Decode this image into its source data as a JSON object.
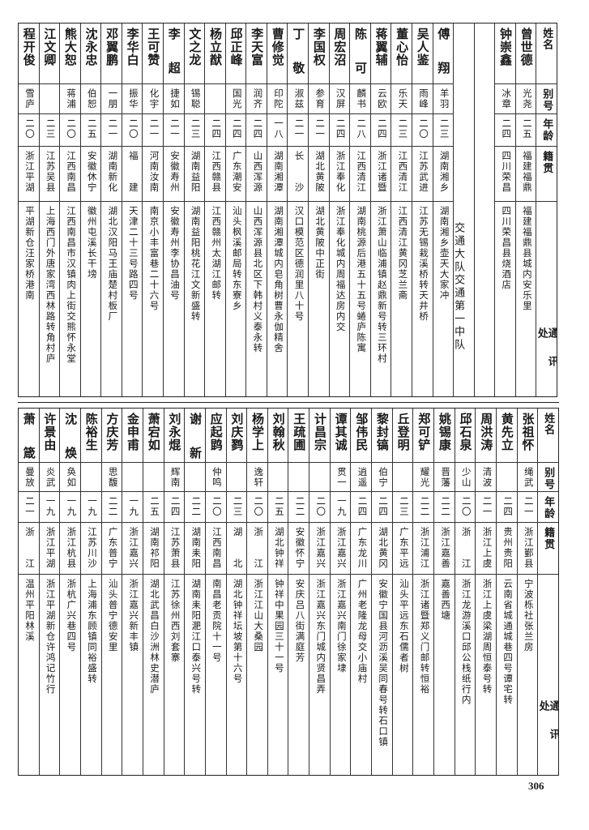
{
  "headers": {
    "name": "姓名",
    "alias": "别号",
    "age": "年龄",
    "origin": "籍贯",
    "address": "通讯处"
  },
  "top_table": {
    "columns": [
      {
        "type": "person",
        "name": "曾世德",
        "alias": "光尧",
        "age": "二五",
        "origin": "福建福鼎",
        "address": "福建福鼎县城内安乐里"
      },
      {
        "type": "person",
        "name": "钟崇鑫",
        "alias": "冰章",
        "age": "二四",
        "origin": "四川荣昌",
        "address": "四川荣昌县烧酒店"
      },
      {
        "type": "blank"
      },
      {
        "type": "section",
        "label": "交通大队交通第一中队"
      },
      {
        "type": "person",
        "name": "傅翔",
        "alias": "羊羽",
        "age": "二三",
        "origin": "湖南湘乡",
        "address": "湖南湘乡壶天大家冲"
      },
      {
        "type": "person",
        "name": "吴人鉴",
        "alias": "雨峰",
        "age": "二〇",
        "origin": "江苏武进",
        "address": "江苏无锡栽溪桥转天井桥"
      },
      {
        "type": "person",
        "name": "董心怡",
        "alias": "乐天",
        "age": "二三",
        "origin": "江西清江",
        "address": "江西清江黄冈芝兰斋"
      },
      {
        "type": "person",
        "name": "蒋翼辅",
        "alias": "云欧",
        "age": "二四",
        "origin": "浙江诸暨",
        "address": "浙江萧山临浦镇赵鼎新号转三环村"
      },
      {
        "type": "person",
        "name": "陈可",
        "alias": "麟书",
        "age": "二八",
        "origin": "江西清江",
        "address": "湖南桃源后港五十五号蜷庐陈寓"
      },
      {
        "type": "person",
        "name": "周宏沼",
        "alias": "汉屏",
        "age": "二四",
        "origin": "浙江奉化",
        "address": "浙江奉化城内周福达房内交"
      },
      {
        "type": "person",
        "name": "李国权",
        "alias": "参育",
        "age": "二一",
        "origin": "湖北黄陂",
        "address": "湖北黄陂中正街"
      },
      {
        "type": "person",
        "name": "丁敬",
        "alias": "淑兹",
        "age": "二一",
        "origin": "长沙",
        "address": "汉口模范区德润里八十号"
      },
      {
        "type": "person",
        "name": "曹修觉",
        "alias": "印陀",
        "age": "一八",
        "origin": "湖南湘潭",
        "address": "湖南湘潭城内皂角树曹永伽精舍"
      },
      {
        "type": "person",
        "name": "李天富",
        "alias": "润齐",
        "age": "二四",
        "origin": "山西浑源",
        "address": "山西浑源县北区下韩村义泰永转"
      },
      {
        "type": "person",
        "name": "邱正峰",
        "alias": "国光",
        "age": "二四",
        "origin": "广东潮安",
        "address": "汕头枫溪邮局转东寮乡"
      },
      {
        "type": "person",
        "name": "杨立猷",
        "alias": "",
        "age": "二四",
        "origin": "江西赣县",
        "address": "江西赣州太湖江邮转"
      },
      {
        "type": "person",
        "name": "文之龙",
        "alias": "锡聪",
        "age": "二三",
        "origin": "湖南益阳",
        "address": "湖南益阳桃花江文新盛转"
      },
      {
        "type": "person",
        "name": "李超",
        "alias": "捷如",
        "age": "二一",
        "origin": "安徽寿州",
        "address": "安徽寿州李协昌油号"
      },
      {
        "type": "person",
        "name": "王可赞",
        "alias": "化宇",
        "age": "二一",
        "origin": "河南汝南",
        "address": "南京小丰富巷二十六号"
      },
      {
        "type": "person",
        "name": "李华白",
        "alias": "振华",
        "age": "二〇",
        "origin": "福建",
        "address": "天津二十三号路四号"
      },
      {
        "type": "person",
        "name": "邓翼鹏",
        "alias": "一朋",
        "age": "二一",
        "origin": "湖南新化",
        "address": "湖北汉阳马王庙楚村板厂"
      },
      {
        "type": "person",
        "name": "沈永忠",
        "alias": "伯恕",
        "age": "二五",
        "origin": "安徽休宁",
        "address": "徽州屯溪长干塝"
      },
      {
        "type": "person",
        "name": "熊大恕",
        "alias": "蒋浦",
        "age": "二〇",
        "origin": "江西南昌",
        "address": "江西南昌市汉镇肉上街交熊怀永堂"
      },
      {
        "type": "person",
        "name": "江文卿",
        "alias": "",
        "age": "二三",
        "origin": "江苏吴县",
        "address": "上海西门外唐家湾西林路转角村庐"
      },
      {
        "type": "person",
        "name": "程开俊",
        "alias": "雪庐",
        "age": "二〇",
        "origin": "浙江平湖",
        "address": "平湖新仓汪家桥港南"
      }
    ]
  },
  "bottom_table": {
    "columns": [
      {
        "type": "person",
        "name": "张祖怀",
        "alias": "绳武",
        "age": "二一",
        "origin": "浙江鄞县",
        "address": "宁波栎社张兰房"
      },
      {
        "type": "person",
        "name": "黄先立",
        "alias": "",
        "age": "二四",
        "origin": "贵州贵阳",
        "address": "云南省城通城巷四号谭宅转"
      },
      {
        "type": "person",
        "name": "周洪涛",
        "alias": "清波",
        "age": "二一",
        "origin": "浙江上虞",
        "address": "浙江上虞梁湖周恒泰号转"
      },
      {
        "type": "person",
        "name": "邱石泉",
        "alias": "少山",
        "age": "二〇",
        "origin": "浙江",
        "address": "浙江龙游溪口邱公栈纸行内"
      },
      {
        "type": "person",
        "name": "姚锡康",
        "alias": "晋藩",
        "age": "二二",
        "origin": "浙江嘉善",
        "address": "嘉善西塘"
      },
      {
        "type": "person",
        "name": "郑可铲",
        "alias": "耀光",
        "age": "二二",
        "origin": "浙江浦江",
        "address": "浙江诸暨郑义门邮转恒裕"
      },
      {
        "type": "person",
        "name": "丘登明",
        "alias": "",
        "age": "二三",
        "origin": "广东平远",
        "address": "汕头平远东石儒者树"
      },
      {
        "type": "person",
        "name": "黎封镐",
        "alias": "伯宁",
        "age": "二四",
        "origin": "湖北黄冈",
        "address": "安徽宁国县河沥溪吴同春号转石口镇"
      },
      {
        "type": "person",
        "name": "邹伟民",
        "alias": "逍遥",
        "age": "二四",
        "origin": "广东龙川",
        "address": "广州老隆龙母交小庙村"
      },
      {
        "type": "person",
        "name": "谭其诚",
        "alias": "贯一",
        "age": "一九",
        "origin": "浙江嘉兴",
        "address": "浙江嘉兴南门徐家埭"
      },
      {
        "type": "person",
        "name": "计昌宗",
        "alias": "",
        "age": "二〇",
        "origin": "浙江嘉兴",
        "address": "浙江嘉兴东门城内贤昌弄"
      },
      {
        "type": "person",
        "name": "王疏圃",
        "alias": "",
        "age": "二二",
        "origin": "安徽怀宁",
        "address": "安庆吕八街满庭芳"
      },
      {
        "type": "person",
        "name": "刘翰秋",
        "alias": "",
        "age": "二五",
        "origin": "湖北钟祥",
        "address": "钟祥中果园三十一号"
      },
      {
        "type": "person",
        "name": "杨学上",
        "alias": "逸轩",
        "age": "二〇",
        "origin": "浙江",
        "address": "浙江江山大桑园"
      },
      {
        "type": "person",
        "name": "刘庆鹨",
        "alias": "",
        "age": "二三",
        "origin": "湖北",
        "address": "湖北钟祥坛坡第十六号"
      },
      {
        "type": "person",
        "name": "应起鹍",
        "alias": "仲鸣",
        "age": "二〇",
        "origin": "江西南昌",
        "address": "南昌老贡院十一号"
      },
      {
        "type": "person",
        "name": "谢新",
        "alias": "",
        "age": "二二",
        "origin": "湖南耒阳",
        "address": "湖南耒阳淝江口泰兴号转"
      },
      {
        "type": "person",
        "name": "刘永焜",
        "alias": "辉南",
        "age": "二四",
        "origin": "江苏萧县",
        "address": "江苏徐州西刘套寨"
      },
      {
        "type": "person",
        "name": "萧宕如",
        "alias": "",
        "age": "二五",
        "origin": "湖南祁阳",
        "address": "湖北武昌白沙洲林史潜庐"
      },
      {
        "type": "person",
        "name": "金申甫",
        "alias": "",
        "age": "一九",
        "origin": "浙江嘉兴",
        "address": "浙江嘉兴新丰镇"
      },
      {
        "type": "person",
        "name": "方庆芳",
        "alias": "思馥",
        "age": "二二",
        "origin": "广东普宁",
        "address": "汕头普宁德安里"
      },
      {
        "type": "person",
        "name": "陈裕生",
        "alias": "",
        "age": "一九",
        "origin": "江苏川沙",
        "address": "上海浦东顾镇同裕盛转"
      },
      {
        "type": "person",
        "name": "沈焕",
        "alias": "奂如",
        "age": "一九",
        "origin": "浙江杭县",
        "address": "浙杭广兴巷四号"
      },
      {
        "type": "person",
        "name": "许景由",
        "alias": "炎武",
        "age": "一九",
        "origin": "浙江平湖",
        "address": "浙江平湖新仓许鸿记竹行"
      },
      {
        "type": "person",
        "name": "萧箴",
        "alias": "曼放",
        "age": "二一",
        "origin": "浙江",
        "address": "温州平阳林溪"
      }
    ]
  },
  "page_number": "306"
}
